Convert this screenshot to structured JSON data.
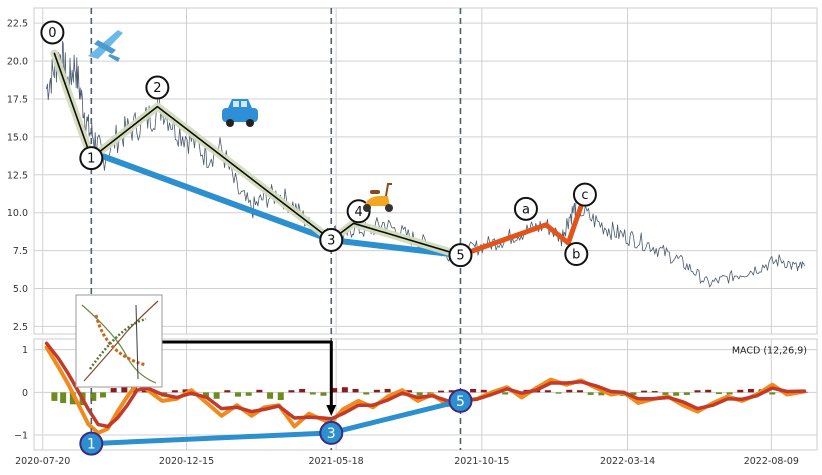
{
  "chart_data": [
    {
      "type": "line",
      "panel": "price",
      "title": "",
      "xlabel": "",
      "ylabel": "",
      "ylim": [
        2.0,
        23.5
      ],
      "xlim": [
        "2020-07-11",
        "2022-09-25"
      ],
      "grid": true,
      "x_ticks": [
        "2020-07-20",
        "2020-12-15",
        "2021-05-18",
        "2021-10-15",
        "2022-03-14",
        "2022-08-09"
      ],
      "y_ticks": [
        2.5,
        5.0,
        7.5,
        10.0,
        12.5,
        15.0,
        17.5,
        20.0,
        22.5
      ],
      "y_tick_labels": [
        "2.5",
        "5.0",
        "7.5",
        "10.0",
        "12.5",
        "15.0",
        "17.5",
        "20.0",
        "22.5"
      ],
      "vertical_lines": [
        "2020-09-08",
        "2021-05-13",
        "2021-09-23"
      ],
      "series": [
        {
          "role": "price",
          "color": "#4a5a70",
          "x": [
            "2020-07-24",
            "2020-08-01",
            "2020-08-08",
            "2020-08-15",
            "2020-08-22",
            "2020-08-29",
            "2020-09-05",
            "2020-09-12",
            "2020-09-20",
            "2020-10-05",
            "2020-10-20",
            "2020-11-05",
            "2020-11-20",
            "2020-12-05",
            "2020-12-20",
            "2021-01-05",
            "2021-01-20",
            "2021-02-05",
            "2021-02-20",
            "2021-03-05",
            "2021-03-20",
            "2021-04-05",
            "2021-04-20",
            "2021-05-05",
            "2021-05-15",
            "2021-05-25",
            "2021-06-05",
            "2021-06-20",
            "2021-07-05",
            "2021-07-20",
            "2021-08-05",
            "2021-08-20",
            "2021-09-05",
            "2021-09-20",
            "2021-10-05",
            "2021-10-20",
            "2021-11-05",
            "2021-11-20",
            "2021-12-05",
            "2021-12-20",
            "2022-01-05",
            "2022-01-12",
            "2022-01-20",
            "2022-02-05",
            "2022-02-20",
            "2022-03-05",
            "2022-03-20",
            "2022-04-05",
            "2022-04-20",
            "2022-05-05",
            "2022-05-20",
            "2022-06-05",
            "2022-06-20",
            "2022-07-05",
            "2022-07-20",
            "2022-08-05",
            "2022-08-20",
            "2022-09-05",
            "2022-09-12"
          ],
          "y": [
            18.2,
            19.5,
            20.5,
            18.5,
            19.8,
            17.5,
            15.5,
            14.8,
            13.6,
            15.0,
            15.6,
            16.2,
            17.0,
            15.5,
            14.8,
            13.8,
            14.2,
            11.5,
            10.2,
            11.0,
            11.2,
            10.4,
            9.2,
            8.3,
            8.8,
            8.4,
            9.0,
            8.8,
            9.3,
            8.8,
            8.3,
            7.9,
            7.4,
            7.2,
            7.6,
            7.9,
            8.2,
            8.6,
            8.9,
            9.2,
            8.3,
            9.6,
            10.4,
            9.6,
            9.0,
            8.6,
            8.3,
            7.9,
            7.4,
            6.9,
            6.2,
            5.3,
            5.6,
            5.9,
            6.2,
            6.6,
            6.9,
            6.3,
            6.5
          ]
        },
        {
          "role": "minor-wave",
          "color": "#0a0f0a",
          "halo_color": "#d4dcbc",
          "x": [
            "2020-08-01",
            "2020-09-08",
            "2020-11-15",
            "2021-05-13",
            "2021-06-05",
            "2021-09-23"
          ],
          "y": [
            20.5,
            13.6,
            17.0,
            8.2,
            9.3,
            7.2
          ],
          "labels": [
            "0",
            "1",
            "2",
            "3",
            "4",
            "5"
          ]
        },
        {
          "role": "major-wave",
          "color": "#2c8fcf",
          "x": [
            "2020-09-08",
            "2021-05-13",
            "2021-09-23"
          ],
          "y": [
            14.0,
            8.2,
            7.2
          ]
        },
        {
          "role": "correction",
          "color": "#e2541a",
          "x": [
            "2021-09-23",
            "2021-12-20",
            "2022-01-12",
            "2022-01-25"
          ],
          "y": [
            7.2,
            9.2,
            8.0,
            10.4
          ],
          "labels": [
            "a",
            "b",
            "c"
          ]
        }
      ]
    },
    {
      "type": "line",
      "panel": "macd",
      "title": "",
      "xlabel": "",
      "ylabel": "",
      "ylim": [
        -1.35,
        1.25
      ],
      "xlim": [
        "2020-07-11",
        "2022-09-25"
      ],
      "grid": true,
      "x_ticks": [
        "2020-07-20",
        "2020-12-15",
        "2021-05-18",
        "2021-10-15",
        "2022-03-14",
        "2022-08-09"
      ],
      "x_tick_labels": [
        "2020-07-20",
        "2020-12-15",
        "2021-05-18",
        "2021-10-15",
        "2022-03-14",
        "2022-08-09"
      ],
      "y_ticks": [
        -1,
        0,
        1
      ],
      "y_tick_labels": [
        "−1",
        "0",
        "1"
      ],
      "legend_text": "MACD (12,26,9)",
      "legend_position": "top-right",
      "series": [
        {
          "role": "macd",
          "color": "#f08a1c",
          "x": [
            "2020-07-24",
            "2020-08-05",
            "2020-08-15",
            "2020-08-25",
            "2020-09-05",
            "2020-09-15",
            "2020-09-25",
            "2020-10-05",
            "2020-10-15",
            "2020-10-25",
            "2020-11-05",
            "2020-11-20",
            "2020-12-05",
            "2020-12-20",
            "2021-01-05",
            "2021-01-20",
            "2021-02-05",
            "2021-02-20",
            "2021-03-05",
            "2021-03-20",
            "2021-04-05",
            "2021-04-20",
            "2021-05-05",
            "2021-05-13",
            "2021-05-25",
            "2021-06-10",
            "2021-06-25",
            "2021-07-10",
            "2021-07-25",
            "2021-08-10",
            "2021-08-25",
            "2021-09-10",
            "2021-09-23",
            "2021-10-10",
            "2021-10-25",
            "2021-11-10",
            "2021-11-25",
            "2021-12-10",
            "2021-12-25",
            "2022-01-10",
            "2022-01-25",
            "2022-02-10",
            "2022-02-25",
            "2022-03-10",
            "2022-03-25",
            "2022-04-10",
            "2022-04-25",
            "2022-05-10",
            "2022-05-25",
            "2022-06-10",
            "2022-06-25",
            "2022-07-10",
            "2022-07-25",
            "2022-08-10",
            "2022-08-25",
            "2022-09-12"
          ],
          "y": [
            1.05,
            0.6,
            0.2,
            -0.25,
            -0.75,
            -0.95,
            -0.85,
            -0.45,
            -0.1,
            0.2,
            0.05,
            -0.2,
            -0.15,
            0.05,
            -0.25,
            -0.55,
            -0.3,
            -0.55,
            -0.35,
            -0.3,
            -0.8,
            -0.5,
            -0.65,
            -0.7,
            -0.4,
            -0.2,
            -0.35,
            -0.1,
            0.05,
            -0.2,
            -0.05,
            -0.3,
            -0.2,
            -0.15,
            0.0,
            0.12,
            -0.12,
            0.1,
            0.3,
            0.18,
            0.28,
            0.1,
            -0.05,
            0.0,
            -0.25,
            -0.15,
            -0.1,
            -0.3,
            -0.45,
            -0.25,
            -0.1,
            -0.2,
            -0.05,
            0.18,
            -0.05,
            0.02
          ]
        },
        {
          "role": "signal",
          "color": "#c23a2a",
          "x": [
            "2020-07-24",
            "2020-08-05",
            "2020-08-15",
            "2020-08-25",
            "2020-09-05",
            "2020-09-15",
            "2020-09-25",
            "2020-10-05",
            "2020-10-15",
            "2020-10-25",
            "2020-11-05",
            "2020-11-20",
            "2020-12-05",
            "2020-12-20",
            "2021-01-05",
            "2021-01-20",
            "2021-02-05",
            "2021-02-20",
            "2021-03-05",
            "2021-03-20",
            "2021-04-05",
            "2021-04-20",
            "2021-05-05",
            "2021-05-13",
            "2021-05-25",
            "2021-06-10",
            "2021-06-25",
            "2021-07-10",
            "2021-07-25",
            "2021-08-10",
            "2021-08-25",
            "2021-09-10",
            "2021-09-23",
            "2021-10-10",
            "2021-10-25",
            "2021-11-10",
            "2021-11-25",
            "2021-12-10",
            "2021-12-25",
            "2022-01-10",
            "2022-01-25",
            "2022-02-10",
            "2022-02-25",
            "2022-03-10",
            "2022-03-25",
            "2022-04-10",
            "2022-04-25",
            "2022-05-10",
            "2022-05-25",
            "2022-06-10",
            "2022-06-25",
            "2022-07-10",
            "2022-07-25",
            "2022-08-10",
            "2022-08-25",
            "2022-09-12"
          ],
          "y": [
            1.15,
            0.8,
            0.45,
            0.05,
            -0.4,
            -0.75,
            -0.8,
            -0.6,
            -0.3,
            0.05,
            0.1,
            -0.05,
            -0.12,
            -0.02,
            -0.12,
            -0.38,
            -0.35,
            -0.45,
            -0.4,
            -0.32,
            -0.6,
            -0.58,
            -0.6,
            -0.62,
            -0.5,
            -0.3,
            -0.3,
            -0.18,
            -0.02,
            -0.12,
            -0.08,
            -0.2,
            -0.2,
            -0.16,
            -0.05,
            0.08,
            -0.02,
            0.05,
            0.22,
            0.22,
            0.25,
            0.15,
            0.02,
            0.0,
            -0.15,
            -0.15,
            -0.12,
            -0.22,
            -0.38,
            -0.3,
            -0.15,
            -0.16,
            -0.08,
            0.1,
            0.02,
            0.03
          ]
        },
        {
          "role": "histogram",
          "color_positive": "#8b1a1a",
          "color_negative": "#6e8b1f",
          "x": [
            "2020-08-01",
            "2020-08-10",
            "2020-08-20",
            "2020-08-30",
            "2020-09-10",
            "2020-09-20",
            "2020-10-01",
            "2020-10-12",
            "2020-10-22",
            "2020-11-02",
            "2020-11-12",
            "2020-11-22",
            "2020-12-03",
            "2020-12-14",
            "2020-12-24",
            "2021-01-04",
            "2021-01-15",
            "2021-01-26",
            "2021-02-06",
            "2021-02-17",
            "2021-02-28",
            "2021-03-11",
            "2021-03-22",
            "2021-04-02",
            "2021-04-13",
            "2021-04-24",
            "2021-05-05",
            "2021-05-16",
            "2021-05-27",
            "2021-06-07",
            "2021-06-18",
            "2021-06-29",
            "2021-07-10",
            "2021-07-21",
            "2021-08-01",
            "2021-08-12",
            "2021-08-23",
            "2021-09-03",
            "2021-09-14",
            "2021-09-25",
            "2021-10-06",
            "2021-10-17",
            "2021-10-28",
            "2021-11-08",
            "2021-11-19",
            "2021-11-30",
            "2021-12-11",
            "2021-12-22",
            "2022-01-02",
            "2022-01-13",
            "2022-01-24",
            "2022-02-04",
            "2022-02-15",
            "2022-02-26",
            "2022-03-09",
            "2022-03-20",
            "2022-03-31",
            "2022-04-11",
            "2022-04-22",
            "2022-05-03",
            "2022-05-14",
            "2022-05-25",
            "2022-06-05",
            "2022-06-16",
            "2022-06-27",
            "2022-07-08",
            "2022-07-19",
            "2022-07-30",
            "2022-08-10",
            "2022-08-21",
            "2022-09-01",
            "2022-09-12"
          ],
          "y": [
            -0.2,
            -0.25,
            -0.28,
            -0.3,
            -0.2,
            -0.12,
            0.1,
            0.18,
            0.15,
            0.08,
            -0.05,
            -0.1,
            0.05,
            0.07,
            -0.08,
            -0.12,
            -0.15,
            0.05,
            -0.1,
            -0.08,
            0.06,
            -0.15,
            -0.18,
            0.05,
            0.08,
            -0.05,
            -0.08,
            0.1,
            0.12,
            0.08,
            -0.05,
            0.06,
            0.08,
            -0.06,
            0.05,
            -0.07,
            -0.05,
            0.04,
            0.05,
            0.06,
            0.08,
            0.06,
            -0.04,
            -0.05,
            0.04,
            0.06,
            0.07,
            0.05,
            -0.03,
            0.06,
            0.05,
            -0.06,
            -0.07,
            -0.05,
            -0.08,
            -0.06,
            0.04,
            0.03,
            -0.06,
            -0.08,
            -0.06,
            0.05,
            0.06,
            -0.04,
            -0.05,
            0.06,
            0.08,
            0.07,
            -0.05,
            0.03,
            0.02,
            0.01
          ]
        },
        {
          "role": "wave-markers",
          "color": "#2c8fcf",
          "x": [
            "2020-09-08",
            "2021-05-13",
            "2021-09-23"
          ],
          "y": [
            -1.2,
            -0.95,
            -0.2
          ],
          "labels": [
            "1",
            "3",
            "5"
          ]
        }
      ]
    }
  ],
  "icons": {
    "airplane": "airplane-icon",
    "car": "car-icon",
    "scooter": "scooter-icon",
    "inset": "wave-diagram-thumbnail-icon"
  },
  "colors": {
    "background": "#ffffff",
    "panel_bg": "#ffffff",
    "grid": "#d0d0d0",
    "axes_border": "#cccccc",
    "vline": "#4a6274",
    "text": "#333333"
  }
}
